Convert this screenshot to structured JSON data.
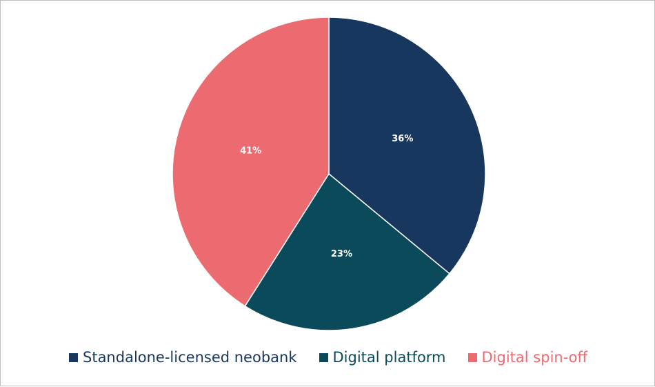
{
  "chart_data": {
    "type": "pie",
    "title": "",
    "slices": [
      {
        "name": "Standalone-licensed neobank",
        "value": 36,
        "label": "36%",
        "color": "#17375e",
        "legend_text_color": "#17375e"
      },
      {
        "name": "Digital platform",
        "value": 23,
        "label": "23%",
        "color": "#0b4a5a",
        "legend_text_color": "#0b4a5a"
      },
      {
        "name": "Digital spin-off",
        "value": 41,
        "label": "41%",
        "color": "#ec6b70",
        "legend_text_color": "#ec6b70"
      }
    ],
    "start_angle": "12 o'clock",
    "direction": "clockwise",
    "label_color": "#ffffff",
    "legend_position": "bottom"
  }
}
